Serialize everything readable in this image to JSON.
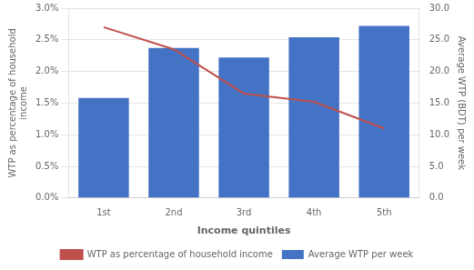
{
  "chart_data": {
    "type": "bar",
    "categories": [
      "1st",
      "2nd",
      "3rd",
      "4th",
      "5th"
    ],
    "xlabel": "Income quintiles",
    "ylabel": "WTP as percentage of household\nincome",
    "y2label": "Average WTP (BDT) per week",
    "series": [
      {
        "name": "Average WTP per week",
        "type": "bar",
        "color": "#4472C4",
        "values": [
          0.0158,
          0.0237,
          0.0222,
          0.0254,
          0.0272
        ]
      },
      {
        "name": "WTP as percentage of household income",
        "type": "line",
        "color": "#C0504D",
        "axis": "y2",
        "values": [
          27.0,
          23.5,
          16.5,
          15.2,
          11.0
        ]
      }
    ],
    "ylim": [
      0.0,
      0.03
    ],
    "yticks": [
      {
        "value": 0.0,
        "label": "0.0%"
      },
      {
        "value": 0.005,
        "label": "0.5%"
      },
      {
        "value": 0.01,
        "label": "1.0%"
      },
      {
        "value": 0.015,
        "label": "1.5%"
      },
      {
        "value": 0.02,
        "label": "2.0%"
      },
      {
        "value": 0.025,
        "label": "2.5%"
      },
      {
        "value": 0.03,
        "label": "3.0%"
      }
    ],
    "y2lim": [
      0.0,
      30.0
    ],
    "y2ticks": [
      {
        "value": 0.0,
        "label": "0.0"
      },
      {
        "value": 5.0,
        "label": "5.0"
      },
      {
        "value": 10.0,
        "label": "10.0"
      },
      {
        "value": 15.0,
        "label": "15.0"
      },
      {
        "value": 20.0,
        "label": "20.0"
      },
      {
        "value": 25.0,
        "label": "25.0"
      },
      {
        "value": 30.0,
        "label": "30.0"
      }
    ],
    "grid": true,
    "legend": "bottom"
  }
}
